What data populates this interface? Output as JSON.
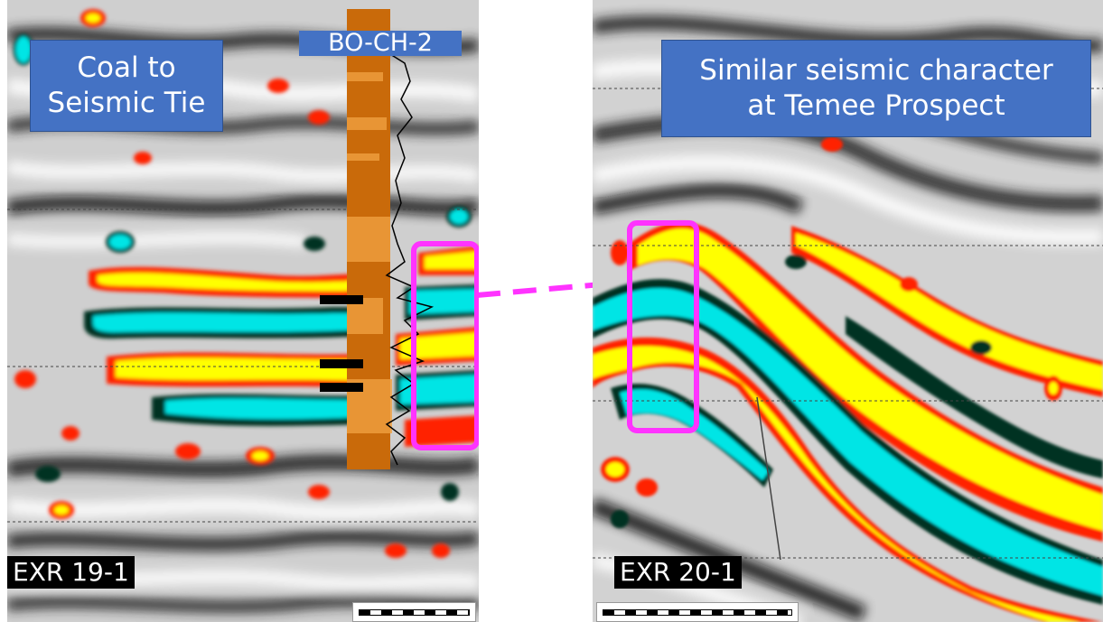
{
  "left_panel": {
    "callout": [
      "Coal to",
      "Seismic Tie"
    ],
    "well_label": "BO-CH-2",
    "line_label": "EXR 19-1"
  },
  "right_panel": {
    "callout": [
      "Similar seismic character",
      "at Temee Prospect"
    ],
    "line_label": "EXR 20-1"
  },
  "colors": {
    "highlight_box": "#ff33ff",
    "callout_fill": "#4472c4",
    "positive_peak": "#ffff00",
    "peak_edge": "#ff2200",
    "negative_trough": "#00e5e5",
    "trough_edge": "#003320",
    "well_log": "#d9780f"
  }
}
